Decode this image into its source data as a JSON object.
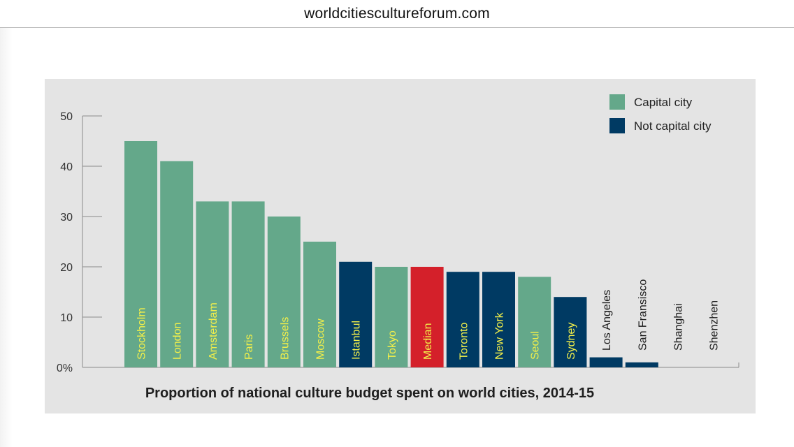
{
  "browser": {
    "url": "worldcitiescultureforum.com"
  },
  "colors": {
    "capital": "#64a88a",
    "not_capital": "#003a63",
    "median": "#d4202a",
    "label_on_bar": "#f2ef4a",
    "label_plain": "#1a1a1a"
  },
  "chart_data": {
    "type": "bar",
    "title": "Proportion of national culture budget spent on world cities, 2014-15",
    "xlabel": "",
    "ylabel": "",
    "ylim": [
      0,
      50
    ],
    "yticks": [
      "0%",
      "10",
      "20",
      "30",
      "40",
      "50"
    ],
    "grid": false,
    "legend_position": "top-right",
    "legend": [
      {
        "label": "Capital city",
        "color": "#64a88a"
      },
      {
        "label": "Not capital city",
        "color": "#003a63"
      }
    ],
    "categories": [
      "Stockholm",
      "London",
      "Amsterdam",
      "Paris",
      "Brussels",
      "Moscow",
      "Istanbul",
      "Tokyo",
      "Median",
      "Toronto",
      "New York",
      "Seoul",
      "Sydney",
      "Los Angeles",
      "San Fransisco",
      "Shanghai",
      "Shenzhen"
    ],
    "values": [
      45,
      41,
      33,
      33,
      30,
      25,
      21,
      20,
      20,
      19,
      19,
      18,
      14,
      2,
      1,
      0,
      0
    ],
    "groups": [
      "capital",
      "capital",
      "capital",
      "capital",
      "capital",
      "capital",
      "not_capital",
      "capital",
      "median",
      "not_capital",
      "not_capital",
      "capital",
      "not_capital",
      "not_capital",
      "not_capital",
      "not_capital",
      "not_capital"
    ]
  }
}
